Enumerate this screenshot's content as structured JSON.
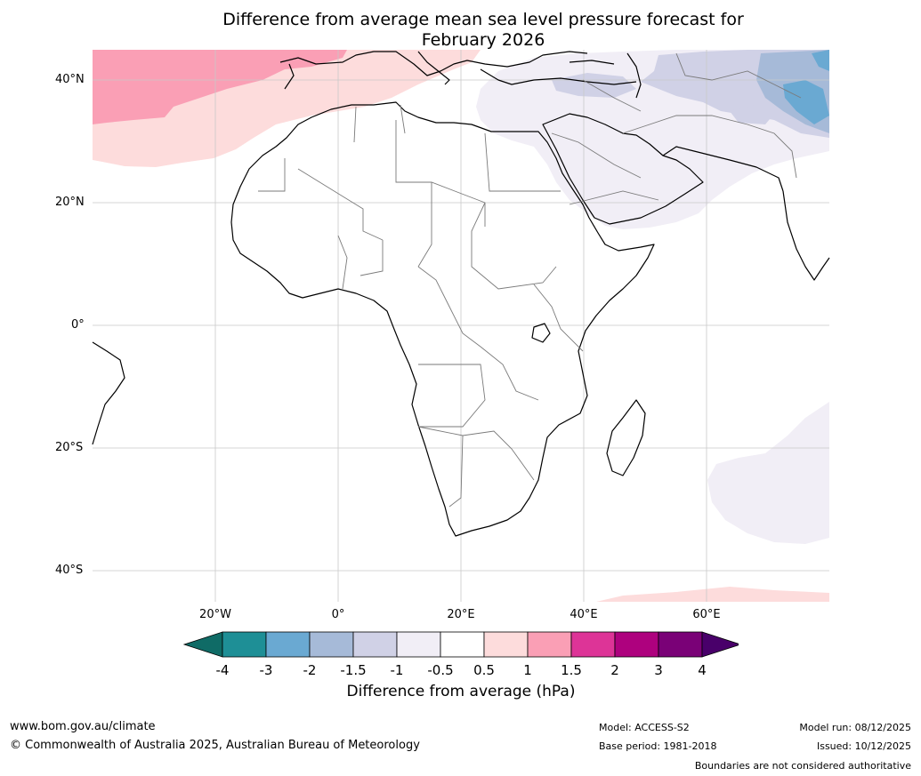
{
  "title": {
    "line1": "Difference from average mean sea level pressure forecast for",
    "line2": "February 2026"
  },
  "map": {
    "lat_labels": [
      "40°N",
      "20°N",
      "0°",
      "20°S",
      "40°S"
    ],
    "lon_labels": [
      "20°W",
      "0°",
      "20°E",
      "40°E",
      "60°E"
    ],
    "lon_range": [
      -40,
      80
    ],
    "lat_range": [
      -45,
      45
    ],
    "region": "Africa and Middle East"
  },
  "colorbar": {
    "ticks": [
      "-4",
      "-3",
      "-2",
      "-1.5",
      "-1",
      "-0.5",
      "0.5",
      "1",
      "1.5",
      "2",
      "3",
      "4"
    ],
    "colors": [
      "#0f6b66",
      "#1e8f96",
      "#6aa9d2",
      "#a6bad8",
      "#d0d1e6",
      "#f1eef6",
      "#ffffff",
      "#fddcdc",
      "#fa9fb5",
      "#dd3497",
      "#ae017e",
      "#7a0177",
      "#49006a"
    ],
    "label": "Difference from average (hPa)"
  },
  "footer": {
    "website": "www.bom.gov.au/climate",
    "copyright": "© Commonwealth of Australia 2025, Australian Bureau of Meteorology",
    "model": "Model: ACCESS-S2",
    "base_period": "Base period: 1981-2018",
    "model_run": "Model run: 08/12/2025",
    "issued": "Issued: 10/12/2025",
    "disclaimer": "Boundaries are not considered authoritative"
  }
}
